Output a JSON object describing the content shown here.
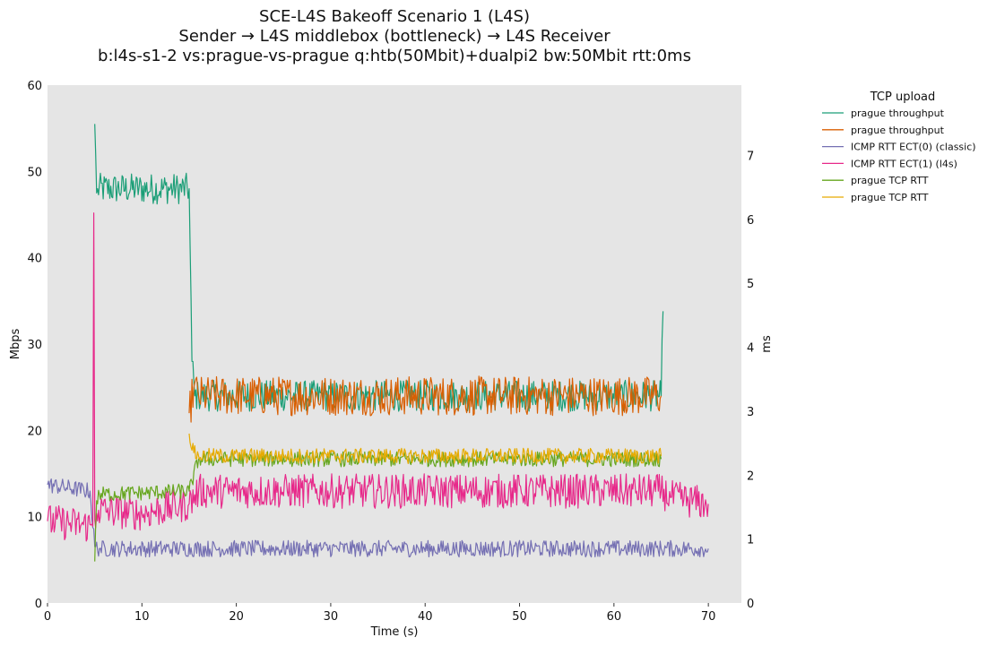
{
  "chart_data": {
    "type": "line",
    "title_lines": [
      "SCE-L4S Bakeoff Scenario 1 (L4S)",
      "Sender → L4S middlebox (bottleneck) → L4S Receiver",
      "b:l4s-s1-2 vs:prague-vs-prague q:htb(50Mbit)+dualpi2 bw:50Mbit rtt:0ms"
    ],
    "xlabel": "Time (s)",
    "ylabel_left": "Mbps",
    "ylabel_right": "ms",
    "xlim": [
      0,
      73.5
    ],
    "ylim_left": [
      0,
      60
    ],
    "ylim_right": [
      0,
      8.1
    ],
    "x_ticks": [
      0,
      10,
      20,
      30,
      40,
      50,
      60,
      70
    ],
    "y_ticks_left": [
      0,
      10,
      20,
      30,
      40,
      50,
      60
    ],
    "y_ticks_right": [
      0,
      1,
      2,
      3,
      4,
      5,
      6,
      7
    ],
    "grid": false,
    "background": "#e5e5e5",
    "legend": {
      "title": "TCP upload",
      "placement": "outside-right",
      "entries": [
        {
          "label": "prague throughput",
          "color": "#1b9e77"
        },
        {
          "label": "prague throughput",
          "color": "#d95f02"
        },
        {
          "label": "ICMP RTT ECT(0) (classic)",
          "color": "#7570b3"
        },
        {
          "label": "ICMP RTT ECT(1) (l4s)",
          "color": "#e7298a"
        },
        {
          "label": "prague TCP RTT",
          "color": "#66a61e"
        },
        {
          "label": "prague TCP RTT",
          "color": "#e6ab02"
        }
      ]
    },
    "series": [
      {
        "name": "prague throughput",
        "axis": "left",
        "color": "#1b9e77",
        "segments": [
          {
            "x": [
              5.0,
              5.2,
              5.3,
              15.0,
              15.3,
              15.6,
              16.0,
              65.0,
              65.2
            ],
            "y": [
              55.5,
              47.5,
              48.0,
              48.0,
              28.0,
              24.0,
              24.0,
              24.0,
              33.8
            ]
          }
        ],
        "noise": 1.8
      },
      {
        "name": "prague throughput",
        "axis": "left",
        "color": "#d95f02",
        "segments": [
          {
            "x": [
              15.0,
              15.5,
              16.0,
              65.0
            ],
            "y": [
              22.0,
              25.0,
              24.0,
              24.0
            ]
          }
        ],
        "noise": 2.3
      },
      {
        "name": "ICMP RTT ECT(0) (classic)",
        "axis": "right",
        "color": "#7570b3",
        "segments": [
          {
            "x": [
              0,
              4.5,
              5.0,
              5.5,
              70
            ],
            "y": [
              1.85,
              1.75,
              0.88,
              0.85,
              0.85
            ]
          }
        ],
        "noise": 0.13
      },
      {
        "name": "ICMP RTT ECT(1) (l4s)",
        "axis": "right",
        "color": "#e7298a",
        "segments": [
          {
            "x": [
              0,
              4.8,
              4.9,
              5.0,
              5.2,
              5.4,
              10,
              15,
              16,
              65,
              66,
              70
            ],
            "y": [
              1.28,
              1.2,
              6.1,
              1.3,
              1.4,
              1.45,
              1.4,
              1.55,
              1.75,
              1.75,
              1.65,
              1.55
            ]
          }
        ],
        "noise": 0.27
      },
      {
        "name": "prague TCP RTT",
        "axis": "right",
        "color": "#66a61e",
        "segments": [
          {
            "x": [
              5.0,
              5.2,
              5.5,
              15,
              16,
              65
            ],
            "y": [
              0.65,
              1.6,
              1.7,
              1.75,
              2.25,
              2.25
            ]
          }
        ],
        "noise": 0.12
      },
      {
        "name": "prague TCP RTT",
        "axis": "right",
        "color": "#e6ab02",
        "segments": [
          {
            "x": [
              15.0,
              15.5,
              16,
              65
            ],
            "y": [
              2.65,
              2.35,
              2.3,
              2.3
            ]
          }
        ],
        "noise": 0.12
      }
    ]
  }
}
